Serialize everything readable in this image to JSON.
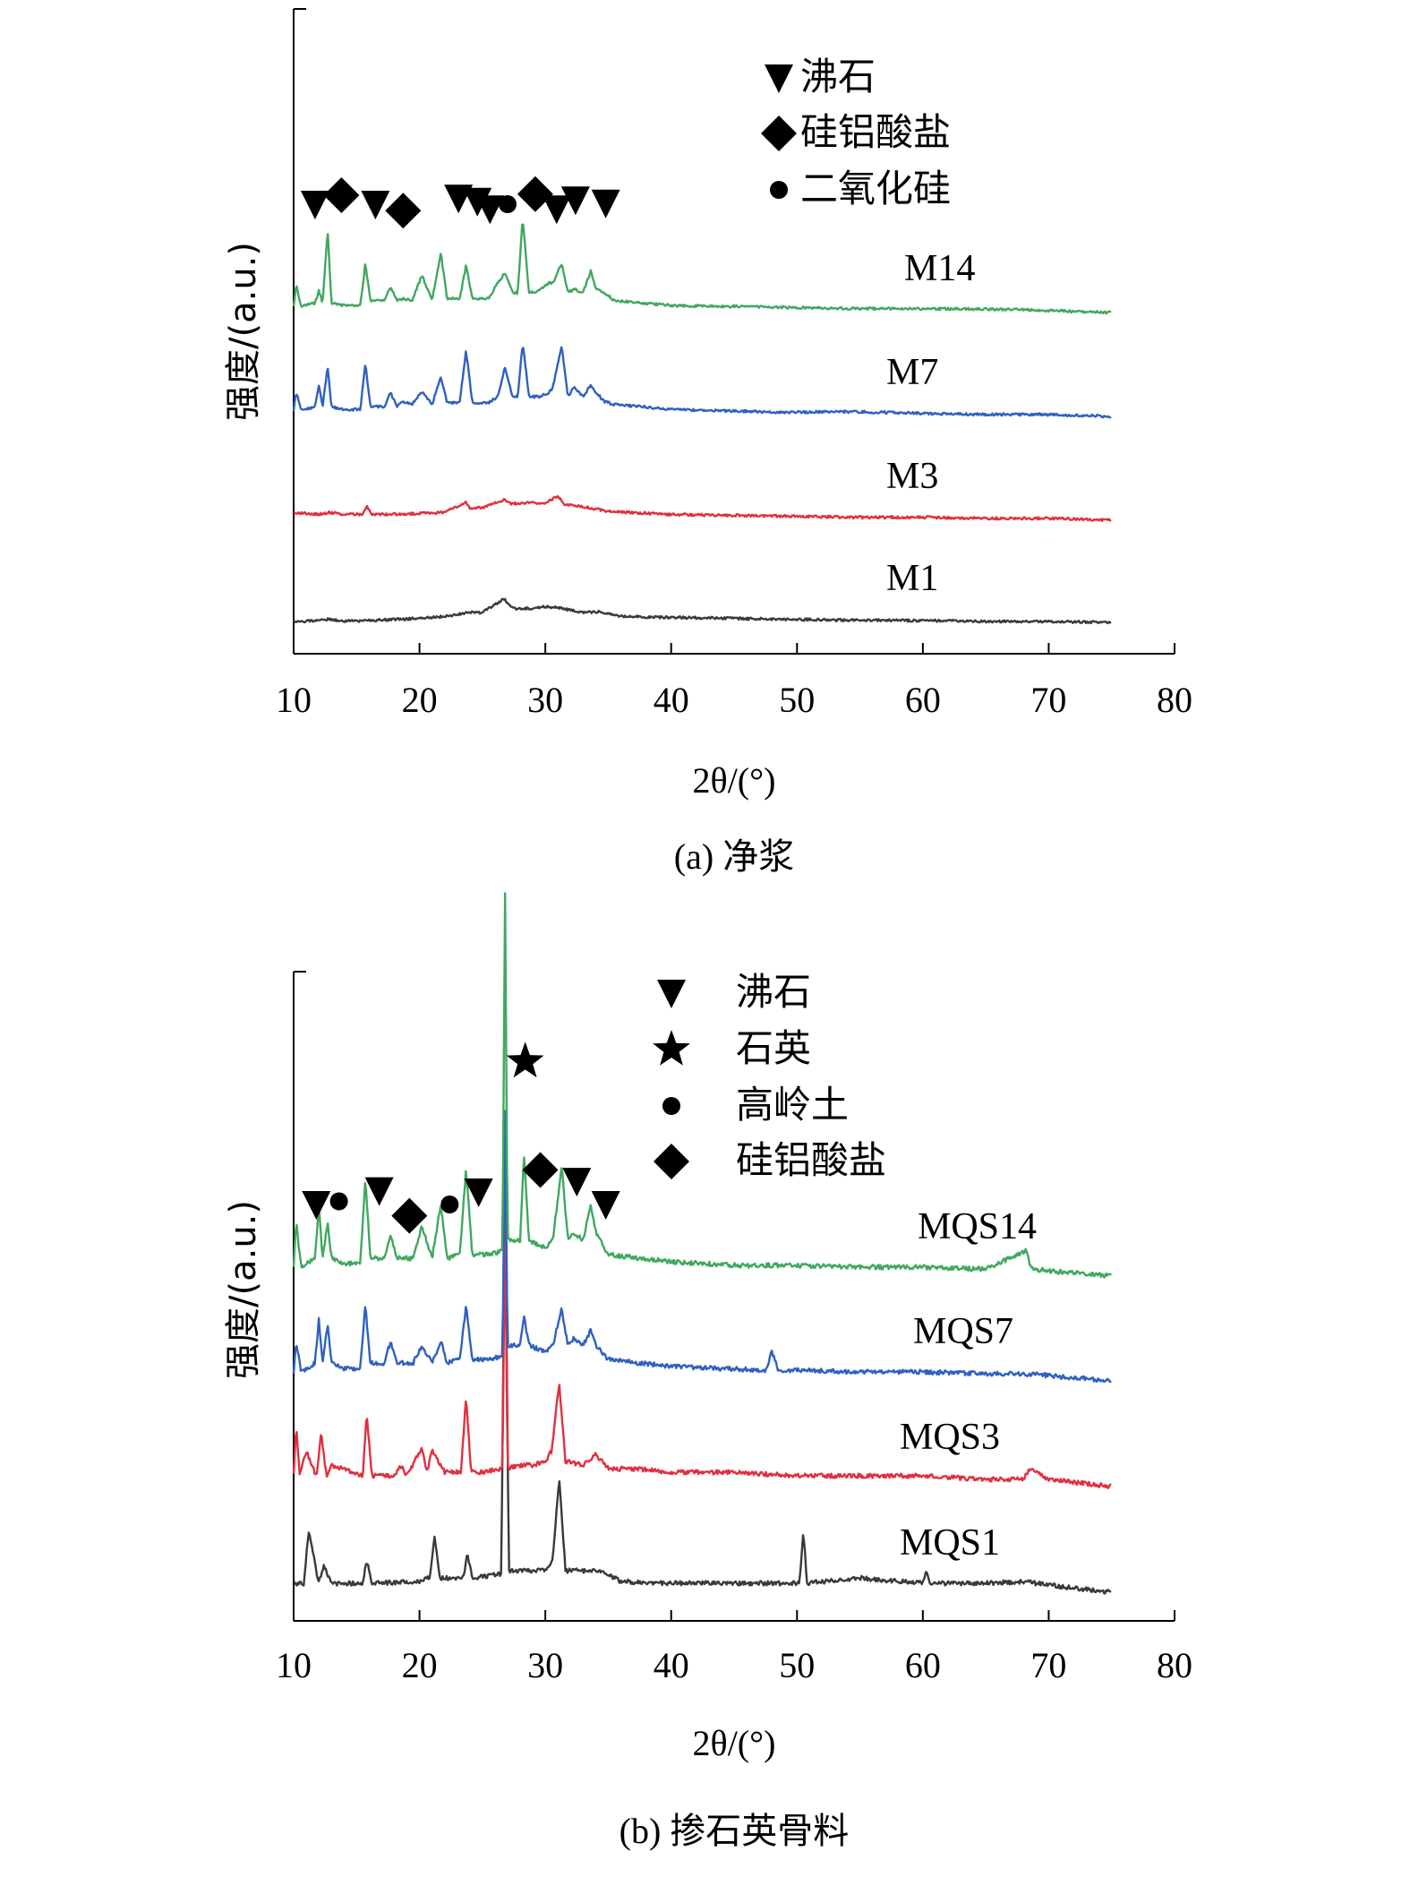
{
  "chart_data": [
    {
      "type": "line",
      "panel": "a",
      "caption": "(a) 净浆",
      "xlabel": "2θ/(°)",
      "ylabel": "强度/(a.u.)",
      "xlim": [
        10,
        80
      ],
      "xticks": [
        10,
        20,
        30,
        40,
        50,
        60,
        70,
        80
      ],
      "x_range": [
        10,
        75
      ],
      "legend": [
        {
          "symbol": "triangle-down",
          "label": "沸石"
        },
        {
          "symbol": "diamond",
          "label": "硅铝酸盐"
        },
        {
          "symbol": "circle",
          "label": "二氧化硅"
        }
      ],
      "peak_markers": [
        {
          "symbol": "triangle-down",
          "x": 11.7,
          "level": 1.0
        },
        {
          "symbol": "diamond",
          "x": 13.8,
          "level": 1.25
        },
        {
          "symbol": "triangle-down",
          "x": 16.5,
          "level": 1.0
        },
        {
          "symbol": "diamond",
          "x": 18.7,
          "level": 0.82
        },
        {
          "symbol": "triangle-down",
          "x": 23.1,
          "level": 1.17
        },
        {
          "symbol": "triangle-down",
          "x": 24.6,
          "level": 1.08
        },
        {
          "symbol": "triangle-down",
          "x": 25.6,
          "level": 0.87
        },
        {
          "symbol": "circle",
          "x": 27.0,
          "level": 1.0
        },
        {
          "symbol": "diamond",
          "x": 29.2,
          "level": 1.28
        },
        {
          "symbol": "triangle-down",
          "x": 30.9,
          "level": 0.87
        },
        {
          "symbol": "triangle-down",
          "x": 32.4,
          "level": 1.12
        },
        {
          "symbol": "triangle-down",
          "x": 34.8,
          "level": 1.03
        }
      ],
      "series": [
        {
          "name": "M1",
          "color": "#3a3a3a",
          "x": [
            10,
            11,
            12.2,
            12.8,
            14,
            16,
            18,
            20,
            22,
            24,
            25,
            26.7,
            27.5,
            29,
            30,
            31,
            33,
            34.3,
            36,
            40,
            45,
            50,
            55,
            60,
            65,
            70,
            75
          ],
          "y": [
            0.01,
            0.01,
            0.03,
            0.03,
            0.01,
            0.02,
            0.03,
            0.04,
            0.06,
            0.1,
            0.1,
            0.24,
            0.14,
            0.14,
            0.16,
            0.15,
            0.1,
            0.11,
            0.06,
            0.05,
            0.04,
            0.03,
            0.02,
            0.02,
            0.01,
            0.01,
            0.0
          ]
        },
        {
          "name": "M3",
          "color": "#e03040",
          "x": [
            10,
            12,
            12.8,
            14,
            15.5,
            15.8,
            16.2,
            18,
            20,
            22,
            23.7,
            24,
            25,
            26.8,
            27.2,
            28,
            29,
            30,
            31,
            31.5,
            33,
            35,
            40,
            45,
            50,
            55,
            60,
            65,
            70,
            75
          ],
          "y": [
            0.08,
            0.06,
            0.08,
            0.06,
            0.06,
            0.14,
            0.06,
            0.06,
            0.07,
            0.08,
            0.18,
            0.12,
            0.13,
            0.21,
            0.17,
            0.17,
            0.18,
            0.17,
            0.25,
            0.16,
            0.14,
            0.09,
            0.06,
            0.05,
            0.04,
            0.03,
            0.03,
            0.02,
            0.02,
            0.0
          ]
        },
        {
          "name": "M7",
          "color": "#3060c0",
          "x": [
            10,
            10.2,
            10.6,
            11.7,
            12.0,
            12.3,
            12.7,
            13.0,
            14,
            15.3,
            15.7,
            16.1,
            17.2,
            17.7,
            18.2,
            18.7,
            19.4,
            20.2,
            21,
            21.7,
            22.2,
            23.2,
            23.7,
            24.2,
            25.5,
            26.2,
            26.8,
            27.4,
            27.8,
            28.2,
            28.7,
            29.5,
            30.3,
            30.6,
            31.3,
            31.8,
            32.3,
            33.0,
            33.6,
            34.0,
            34.7,
            35.5,
            37.5,
            40,
            43,
            46,
            50,
            53,
            57.5,
            60,
            65,
            70,
            75
          ],
          "y": [
            0.06,
            0.25,
            0.06,
            0.1,
            0.32,
            0.1,
            0.5,
            0.1,
            0.07,
            0.07,
            0.54,
            0.1,
            0.1,
            0.24,
            0.1,
            0.15,
            0.12,
            0.25,
            0.12,
            0.4,
            0.14,
            0.14,
            0.67,
            0.14,
            0.14,
            0.2,
            0.5,
            0.2,
            0.2,
            0.75,
            0.2,
            0.2,
            0.24,
            0.3,
            0.72,
            0.2,
            0.3,
            0.2,
            0.32,
            0.25,
            0.15,
            0.12,
            0.1,
            0.07,
            0.06,
            0.05,
            0.04,
            0.05,
            0.04,
            0.03,
            0.02,
            0.02,
            0.0
          ]
        },
        {
          "name": "M14",
          "color": "#40a860",
          "x": [
            10,
            10.2,
            10.6,
            11.7,
            12.0,
            12.3,
            12.7,
            13.0,
            14,
            15.3,
            15.7,
            16.1,
            17.2,
            17.7,
            18.2,
            18.7,
            19.4,
            20.2,
            21,
            21.7,
            22.2,
            23.2,
            23.7,
            24.2,
            25.5,
            26.2,
            26.8,
            27.4,
            27.8,
            28.2,
            28.7,
            29.5,
            30.3,
            30.6,
            31.3,
            31.8,
            32.3,
            33.0,
            33.6,
            34.0,
            34.7,
            35.5,
            37.5,
            40,
            46,
            50,
            55,
            60,
            68,
            70,
            75
          ],
          "y": [
            0.06,
            0.28,
            0.06,
            0.1,
            0.22,
            0.1,
            0.84,
            0.1,
            0.07,
            0.07,
            0.5,
            0.12,
            0.12,
            0.26,
            0.12,
            0.14,
            0.12,
            0.38,
            0.12,
            0.6,
            0.14,
            0.14,
            0.48,
            0.14,
            0.14,
            0.3,
            0.4,
            0.2,
            0.2,
            0.96,
            0.2,
            0.22,
            0.3,
            0.3,
            0.5,
            0.2,
            0.24,
            0.2,
            0.42,
            0.25,
            0.2,
            0.12,
            0.1,
            0.07,
            0.06,
            0.05,
            0.04,
            0.04,
            0.03,
            0.02,
            0.0
          ]
        }
      ]
    },
    {
      "type": "line",
      "panel": "b",
      "caption": "(b) 掺石英骨料",
      "xlabel": "2θ/(°)",
      "ylabel": "强度/(a.u.)",
      "xlim": [
        10,
        80
      ],
      "xticks": [
        10,
        20,
        30,
        40,
        50,
        60,
        70,
        80
      ],
      "x_range": [
        10,
        75
      ],
      "legend": [
        {
          "symbol": "triangle-down",
          "label": "沸石"
        },
        {
          "symbol": "star",
          "label": "石英"
        },
        {
          "symbol": "circle",
          "label": "高岭土"
        },
        {
          "symbol": "diamond",
          "label": "硅铝酸盐"
        }
      ],
      "peak_markers": [
        {
          "symbol": "triangle-down",
          "x": 11.8,
          "level": 0.0
        },
        {
          "symbol": "circle",
          "x": 13.6,
          "level": 0.05
        },
        {
          "symbol": "triangle-down",
          "x": 16.8,
          "level": 0.22
        },
        {
          "symbol": "diamond",
          "x": 19.2,
          "level": -0.18
        },
        {
          "symbol": "circle",
          "x": 22.4,
          "level": 0.0
        },
        {
          "symbol": "triangle-down",
          "x": 24.7,
          "level": 0.2
        },
        {
          "symbol": "star",
          "x": 28.4,
          "level": 2.28
        },
        {
          "symbol": "diamond",
          "x": 29.6,
          "level": 0.55
        },
        {
          "symbol": "triangle-down",
          "x": 32.5,
          "level": 0.37
        },
        {
          "symbol": "triangle-down",
          "x": 34.8,
          "level": 0.0
        }
      ],
      "series": [
        {
          "name": "MQS1",
          "color": "#3a3a3a",
          "x": [
            10,
            10.8,
            11.2,
            12.0,
            12.4,
            13,
            15.5,
            15.8,
            16.2,
            20,
            20.8,
            21.2,
            21.6,
            22.5,
            23.5,
            23.8,
            24.2,
            26.5,
            26.8,
            27.1,
            28,
            30,
            30.6,
            31.1,
            31.6,
            33,
            34.5,
            36,
            40,
            45,
            50.2,
            50.5,
            50.8,
            55,
            60,
            60.3,
            60.6,
            65,
            68,
            70,
            75
          ],
          "y": [
            0.05,
            0.05,
            0.34,
            0.05,
            0.15,
            0.05,
            0.05,
            0.18,
            0.05,
            0.06,
            0.08,
            0.32,
            0.08,
            0.08,
            0.08,
            0.22,
            0.08,
            0.1,
            2.35,
            0.12,
            0.12,
            0.12,
            0.18,
            0.64,
            0.12,
            0.12,
            0.12,
            0.06,
            0.05,
            0.05,
            0.05,
            0.35,
            0.05,
            0.08,
            0.05,
            0.12,
            0.05,
            0.05,
            0.06,
            0.04,
            0.0
          ]
        },
        {
          "name": "MQS3",
          "color": "#e03040",
          "x": [
            10,
            10.2,
            10.5,
            11,
            11.8,
            12.2,
            12.6,
            13,
            15.5,
            15.8,
            16.2,
            18,
            18.5,
            19,
            20.2,
            20.6,
            21,
            22,
            23.3,
            23.7,
            24.1,
            25,
            26.6,
            26.8,
            27.0,
            28,
            29,
            30,
            30.5,
            31.1,
            31.6,
            33,
            34,
            35,
            37,
            40,
            45,
            50,
            53,
            57,
            60,
            65,
            68,
            68.5,
            70,
            75
          ],
          "y": [
            0.06,
            0.34,
            0.06,
            0.2,
            0.06,
            0.3,
            0.06,
            0.12,
            0.06,
            0.42,
            0.06,
            0.06,
            0.12,
            0.06,
            0.22,
            0.08,
            0.2,
            0.08,
            0.08,
            0.5,
            0.08,
            0.08,
            0.1,
            1.5,
            0.1,
            0.12,
            0.12,
            0.14,
            0.2,
            0.58,
            0.14,
            0.12,
            0.18,
            0.1,
            0.1,
            0.08,
            0.08,
            0.06,
            0.06,
            0.06,
            0.06,
            0.04,
            0.04,
            0.1,
            0.04,
            0.0
          ]
        },
        {
          "name": "MQS7",
          "color": "#3060c0",
          "x": [
            10,
            10.2,
            10.6,
            11.7,
            12.0,
            12.3,
            12.7,
            13.0,
            14,
            15.3,
            15.7,
            16.1,
            17.2,
            17.7,
            18.2,
            19.5,
            20.2,
            21,
            21.7,
            22.2,
            23.2,
            23.7,
            24.2,
            25.5,
            26.6,
            26.8,
            27.0,
            28,
            28.3,
            28.7,
            30,
            30.6,
            31.3,
            31.8,
            32.3,
            33.0,
            33.6,
            34.0,
            35,
            37.5,
            40,
            47.5,
            48,
            48.5,
            50,
            55,
            60,
            65,
            68,
            70,
            75
          ],
          "y": [
            0.05,
            0.22,
            0.05,
            0.1,
            0.35,
            0.1,
            0.32,
            0.1,
            0.07,
            0.07,
            0.42,
            0.1,
            0.1,
            0.22,
            0.1,
            0.1,
            0.2,
            0.1,
            0.22,
            0.1,
            0.12,
            0.42,
            0.12,
            0.12,
            0.14,
            1.5,
            0.2,
            0.2,
            0.36,
            0.2,
            0.16,
            0.2,
            0.4,
            0.2,
            0.24,
            0.2,
            0.28,
            0.2,
            0.12,
            0.1,
            0.08,
            0.06,
            0.16,
            0.06,
            0.06,
            0.05,
            0.05,
            0.04,
            0.04,
            0.03,
            0.0
          ]
        },
        {
          "name": "MQS14",
          "color": "#40a860",
          "x": [
            10,
            10.2,
            10.6,
            11.7,
            12.0,
            12.3,
            12.7,
            13.0,
            14,
            15.3,
            15.7,
            16.1,
            17.2,
            17.7,
            18.2,
            19.5,
            20.2,
            21,
            21.7,
            22.2,
            23.2,
            23.7,
            24.2,
            25.5,
            26.6,
            26.8,
            27.0,
            28,
            28.3,
            28.7,
            30,
            30.6,
            31.3,
            31.8,
            32.3,
            33.0,
            33.6,
            34.0,
            35,
            37.5,
            40,
            45,
            50,
            55,
            60,
            65,
            68.2,
            68.6,
            70,
            75
          ],
          "y": [
            0.05,
            0.3,
            0.05,
            0.1,
            0.4,
            0.1,
            0.3,
            0.1,
            0.07,
            0.07,
            0.55,
            0.1,
            0.1,
            0.22,
            0.1,
            0.1,
            0.28,
            0.1,
            0.4,
            0.1,
            0.12,
            0.6,
            0.12,
            0.12,
            0.14,
            2.15,
            0.2,
            0.2,
            0.7,
            0.2,
            0.16,
            0.2,
            0.62,
            0.2,
            0.24,
            0.2,
            0.4,
            0.25,
            0.12,
            0.1,
            0.08,
            0.06,
            0.06,
            0.05,
            0.05,
            0.04,
            0.14,
            0.04,
            0.03,
            0.0
          ]
        }
      ]
    }
  ]
}
